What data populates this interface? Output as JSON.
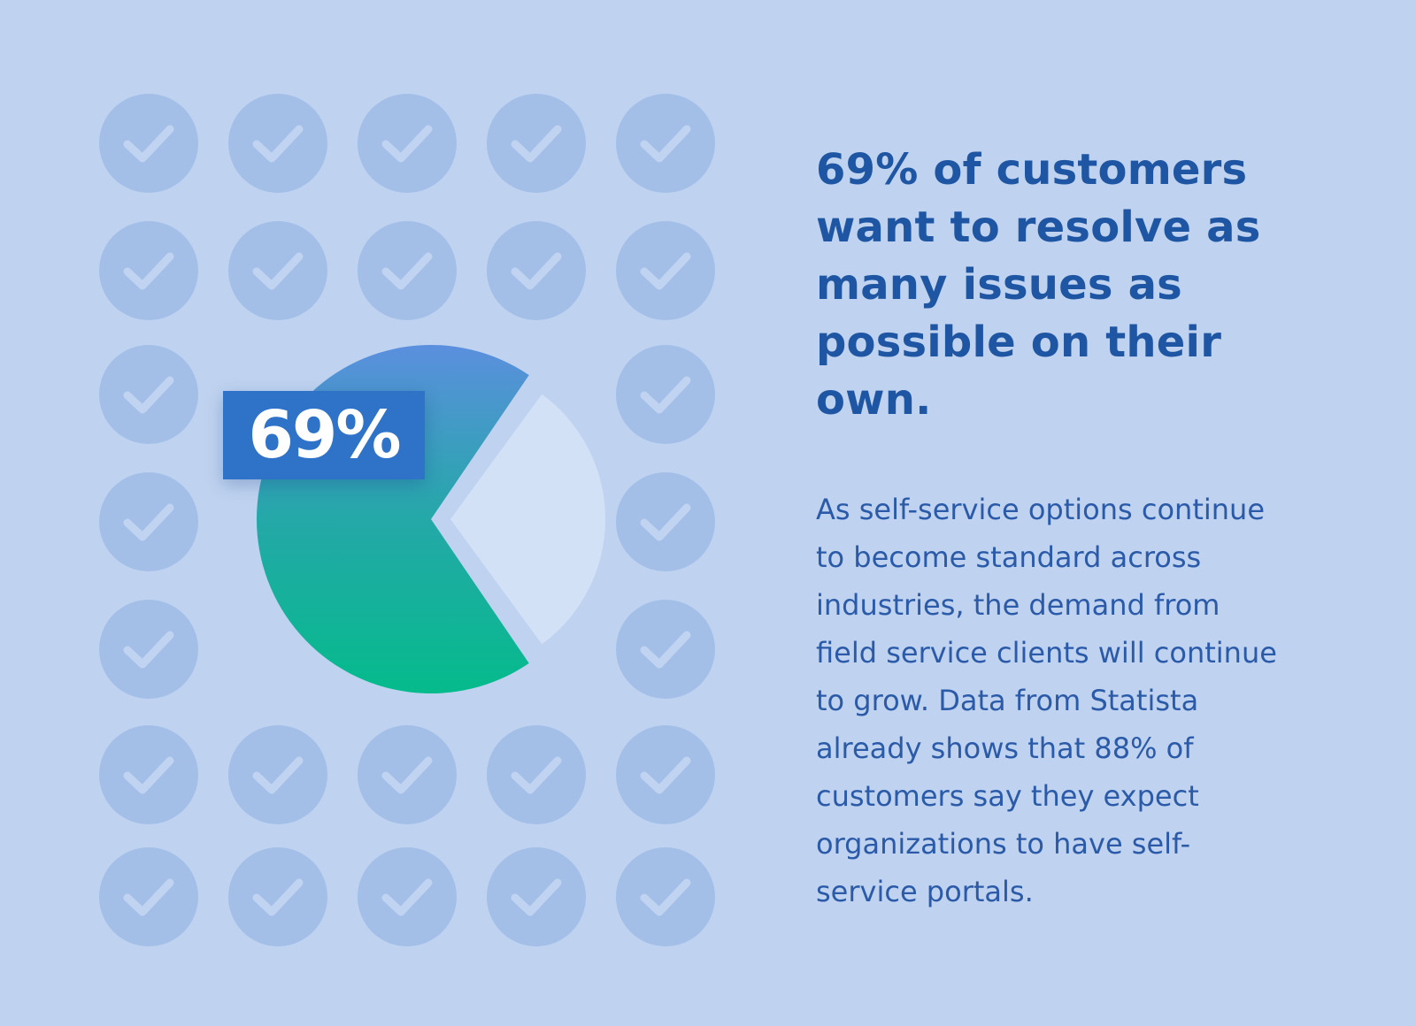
{
  "colors": {
    "background": "#bfd3f0",
    "check_circle": "#a3bfe8",
    "check_mark": "#c0d3f0",
    "pie_value_top": "#5b8fde",
    "pie_value_bottom": "#05bb8c",
    "pie_remainder": "#d3e1f6",
    "badge": "#2f73c9",
    "headline": "#1f56a3",
    "body": "#2a5aa8"
  },
  "decor": {
    "icon": "check-circle-icon"
  },
  "chart_data": {
    "type": "pie",
    "values": [
      69,
      31
    ],
    "data_label": "69%"
  },
  "text": {
    "headline_lines": [
      "69% of customers",
      "want to resolve as",
      "many issues as",
      "possible on their",
      "own."
    ],
    "body_lines": [
      "As self-service options continue",
      "to become standard across",
      "industries, the demand from",
      "field service clients will continue",
      "to grow. Data from Statista",
      "already shows that 88% of",
      "customers say they expect",
      "organizations to have self-",
      "service portals."
    ]
  }
}
